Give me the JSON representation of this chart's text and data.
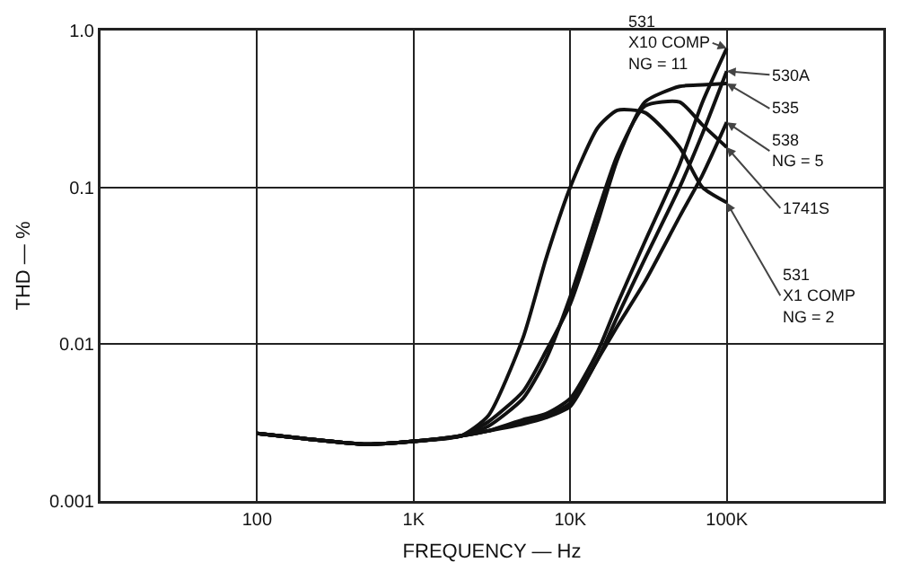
{
  "chart_data": {
    "type": "line",
    "xlabel": "FREQUENCY — Hz",
    "ylabel": "THD — %",
    "log": "xy",
    "grid": true,
    "legend": false,
    "marker": "none",
    "line_style": "solid",
    "xlim": [
      10,
      1000000
    ],
    "xticks": [
      100,
      {
        "value": 1000,
        "label": "1K"
      },
      {
        "value": 10000,
        "label": "10K"
      },
      {
        "value": 100000,
        "label": "100K"
      }
    ],
    "ylim": [
      0.001,
      1
    ],
    "yticks": [
      0.001,
      0.01,
      0.1,
      {
        "value": 1,
        "label": "1.0"
      }
    ],
    "x": [
      100,
      200,
      500,
      1000,
      2000,
      3000,
      5000,
      7000,
      10000,
      15000,
      20000,
      30000,
      50000,
      70000,
      100000
    ],
    "series": [
      {
        "name": "531\nX10 COMP\nNG = 11",
        "color": "#111111",
        "values": [
          0.0027,
          0.0025,
          0.0023,
          0.0024,
          0.0026,
          0.0028,
          0.0033,
          0.0036,
          0.0045,
          0.009,
          0.018,
          0.045,
          0.14,
          0.35,
          0.77
        ]
      },
      {
        "name": "530A",
        "color": "#111111",
        "values": [
          0.0027,
          0.0025,
          0.0023,
          0.0024,
          0.0026,
          0.0028,
          0.0032,
          0.0035,
          0.0042,
          0.008,
          0.015,
          0.035,
          0.1,
          0.22,
          0.55
        ]
      },
      {
        "name": "535",
        "color": "#111111",
        "values": [
          0.0027,
          0.0025,
          0.0023,
          0.0024,
          0.0026,
          0.0032,
          0.005,
          0.009,
          0.018,
          0.06,
          0.15,
          0.35,
          0.44,
          0.45,
          0.46
        ]
      },
      {
        "name": "538\nNG = 5",
        "color": "#111111",
        "values": [
          0.0027,
          0.0025,
          0.0023,
          0.0024,
          0.0026,
          0.0028,
          0.0031,
          0.0034,
          0.004,
          0.008,
          0.013,
          0.025,
          0.065,
          0.12,
          0.26
        ]
      },
      {
        "name": "1741S",
        "color": "#111111",
        "values": [
          0.0027,
          0.0025,
          0.0023,
          0.0024,
          0.0026,
          0.003,
          0.0045,
          0.008,
          0.02,
          0.07,
          0.16,
          0.33,
          0.35,
          0.25,
          0.18
        ]
      },
      {
        "name": "531\nX1 COMP\nNG = 2",
        "color": "#111111",
        "values": [
          0.0027,
          0.0025,
          0.0023,
          0.0024,
          0.0026,
          0.0035,
          0.011,
          0.035,
          0.1,
          0.24,
          0.31,
          0.3,
          0.18,
          0.1,
          0.08
        ]
      }
    ]
  }
}
